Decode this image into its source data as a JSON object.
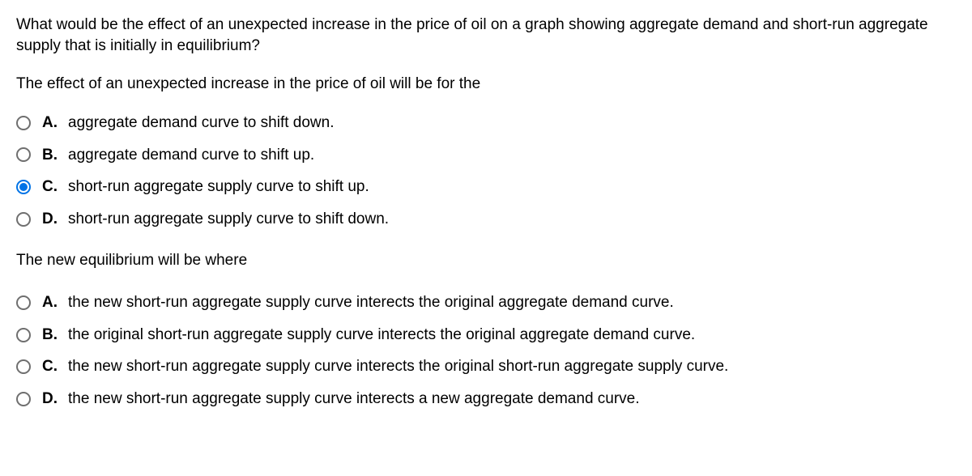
{
  "question": "What would be the effect of an unexpected increase in the price of oil on a graph showing aggregate demand and short-run aggregate supply that is initially in equilibrium?",
  "part1": {
    "prompt": "The effect of an unexpected increase in the price of oil will be for the",
    "options": [
      {
        "letter": "A.",
        "text": "aggregate demand curve to shift down.",
        "selected": false
      },
      {
        "letter": "B.",
        "text": "aggregate demand curve to shift up.",
        "selected": false
      },
      {
        "letter": "C.",
        "text": "short-run aggregate supply curve to shift up.",
        "selected": true
      },
      {
        "letter": "D.",
        "text": "short-run aggregate supply curve to shift down.",
        "selected": false
      }
    ]
  },
  "part2": {
    "prompt": "The new equilibrium will be where",
    "options": [
      {
        "letter": "A.",
        "text": "the new short-run aggregate supply curve interects the original aggregate demand curve.",
        "selected": false
      },
      {
        "letter": "B.",
        "text": "the original short-run aggregate supply curve interects the original aggregate demand curve.",
        "selected": false
      },
      {
        "letter": "C.",
        "text": "the new short-run aggregate supply curve interects the original short-run aggregate supply curve.",
        "selected": false
      },
      {
        "letter": "D.",
        "text": "the new short-run aggregate supply curve interects a new aggregate demand curve.",
        "selected": false
      }
    ]
  },
  "colors": {
    "radio_border": "#6f6f6f",
    "radio_selected": "#0073e6",
    "text": "#000000",
    "background": "#ffffff"
  }
}
